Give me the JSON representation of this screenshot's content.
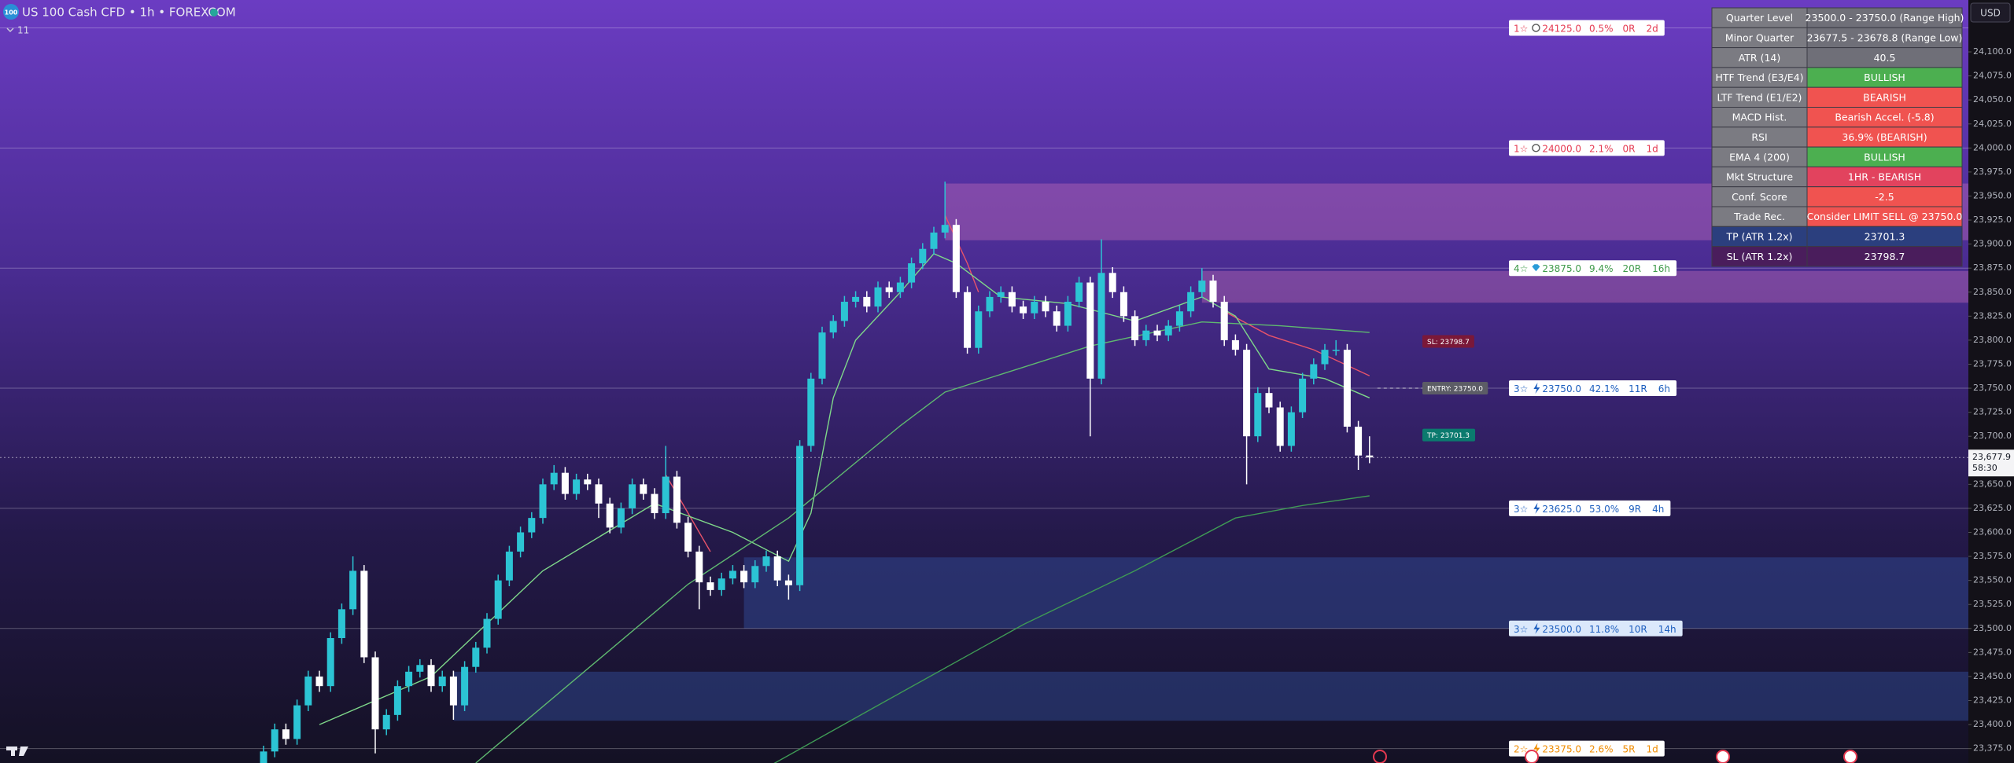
{
  "header": {
    "badge": "100",
    "symbol": "US 100 Cash CFD • 1h • FOREXCOM",
    "indicator_count": "11"
  },
  "table": {
    "rows": [
      {
        "label": "Quarter Level",
        "value": "23500.0 - 23750.0 (Range High)",
        "color": "#6f6f78"
      },
      {
        "label": "Minor Quarter",
        "value": "23677.5 - 23678.8 (Range Low)",
        "color": "#6f6f78"
      },
      {
        "label": "ATR (14)",
        "value": "40.5",
        "color": "#6f6f78"
      },
      {
        "label": "HTF Trend (E3/E4)",
        "value": "BULLISH",
        "color": "#4caf50"
      },
      {
        "label": "LTF Trend (E1/E2)",
        "value": "BEARISH",
        "color": "#f05350"
      },
      {
        "label": "MACD Hist.",
        "value": "Bearish Accel. (-5.8)",
        "color": "#f05350"
      },
      {
        "label": "RSI",
        "value": "36.9% (BEARISH)",
        "color": "#f05350"
      },
      {
        "label": "EMA 4 (200)",
        "value": "BULLISH",
        "color": "#4caf50"
      },
      {
        "label": "Mkt Structure",
        "value": "1HR - BEARISH",
        "color": "#e2435e"
      },
      {
        "label": "Conf. Score",
        "value": "-2.5",
        "color": "#f05350"
      },
      {
        "label": "Trade Rec.",
        "value": "Consider LIMIT SELL @ 23750.0",
        "color": "#f05350"
      },
      {
        "label": "TP (ATR 1.2x)",
        "value": "23701.3",
        "color": "#2b3f7e"
      },
      {
        "label": "SL (ATR 1.2x)",
        "value": "23798.7",
        "color": "#4a1d5c"
      }
    ]
  },
  "chart_data": {
    "type": "candlestick",
    "ylim": [
      23360,
      24154
    ],
    "yticks": [
      {
        "value": 24100,
        "label": "24,100.0"
      },
      {
        "value": 24075,
        "label": "24,075.0"
      },
      {
        "value": 24050,
        "label": "24,050.0"
      },
      {
        "value": 24025,
        "label": "24,025.0"
      },
      {
        "value": 24000,
        "label": "24,000.0"
      },
      {
        "value": 23975,
        "label": "23,975.0"
      },
      {
        "value": 23950,
        "label": "23,950.0"
      },
      {
        "value": 23925,
        "label": "23,925.0"
      },
      {
        "value": 23900,
        "label": "23,900.0"
      },
      {
        "value": 23875,
        "label": "23,875.0"
      },
      {
        "value": 23850,
        "label": "23,850.0"
      },
      {
        "value": 23825,
        "label": "23,825.0"
      },
      {
        "value": 23800,
        "label": "23,800.0"
      },
      {
        "value": 23775,
        "label": "23,775.0"
      },
      {
        "value": 23750,
        "label": "23,750.0"
      },
      {
        "value": 23725,
        "label": "23,725.0"
      },
      {
        "value": 23700,
        "label": "23,700.0"
      },
      {
        "value": 23650,
        "label": "23,650.0"
      },
      {
        "value": 23625,
        "label": "23,625.0"
      },
      {
        "value": 23600,
        "label": "23,600.0"
      },
      {
        "value": 23575,
        "label": "23,575.0"
      },
      {
        "value": 23550,
        "label": "23,550.0"
      },
      {
        "value": 23525,
        "label": "23,525.0"
      },
      {
        "value": 23500,
        "label": "23,500.0"
      },
      {
        "value": 23475,
        "label": "23,475.0"
      },
      {
        "value": 23450,
        "label": "23,450.0"
      },
      {
        "value": 23425,
        "label": "23,425.0"
      },
      {
        "value": 23400,
        "label": "23,400.0"
      },
      {
        "value": 23375,
        "label": "23,375.0"
      }
    ],
    "currency": "USD",
    "current_price": {
      "value": 23677.9,
      "label": "23,677.9"
    },
    "countdown": "58:30",
    "up_color": "#2cc4d4",
    "down_color": "#ffffff",
    "candles": [
      [
        23360,
        23378,
        23354,
        23372
      ],
      [
        23372,
        23401,
        23366,
        23395
      ],
      [
        23395,
        23401,
        23379,
        23385
      ],
      [
        23385,
        23426,
        23379,
        23420
      ],
      [
        23420,
        23456,
        23414,
        23450
      ],
      [
        23450,
        23456,
        23434,
        23440
      ],
      [
        23440,
        23496,
        23434,
        23490
      ],
      [
        23490,
        23526,
        23484,
        23520
      ],
      [
        23520,
        23575,
        23514,
        23560
      ],
      [
        23560,
        23566,
        23464,
        23470
      ],
      [
        23470,
        23476,
        23370,
        23395
      ],
      [
        23395,
        23416,
        23389,
        23410
      ],
      [
        23410,
        23446,
        23404,
        23440
      ],
      [
        23440,
        23461,
        23434,
        23455
      ],
      [
        23455,
        23468,
        23449,
        23462
      ],
      [
        23462,
        23468,
        23434,
        23440
      ],
      [
        23440,
        23456,
        23434,
        23450
      ],
      [
        23450,
        23456,
        23405,
        23420
      ],
      [
        23420,
        23466,
        23414,
        23460
      ],
      [
        23460,
        23486,
        23454,
        23480
      ],
      [
        23480,
        23516,
        23474,
        23510
      ],
      [
        23510,
        23556,
        23504,
        23550
      ],
      [
        23550,
        23586,
        23544,
        23580
      ],
      [
        23580,
        23606,
        23574,
        23600
      ],
      [
        23600,
        23621,
        23594,
        23615
      ],
      [
        23615,
        23656,
        23609,
        23650
      ],
      [
        23650,
        23670,
        23644,
        23662
      ],
      [
        23662,
        23668,
        23634,
        23640
      ],
      [
        23640,
        23661,
        23634,
        23655
      ],
      [
        23655,
        23661,
        23644,
        23650
      ],
      [
        23650,
        23656,
        23615,
        23630
      ],
      [
        23630,
        23636,
        23599,
        23605
      ],
      [
        23605,
        23631,
        23599,
        23625
      ],
      [
        23625,
        23656,
        23619,
        23650
      ],
      [
        23650,
        23656,
        23634,
        23640
      ],
      [
        23640,
        23646,
        23614,
        23620
      ],
      [
        23620,
        23690,
        23614,
        23658
      ],
      [
        23658,
        23664,
        23604,
        23610
      ],
      [
        23610,
        23616,
        23574,
        23580
      ],
      [
        23580,
        23586,
        23520,
        23548
      ],
      [
        23548,
        23554,
        23534,
        23540
      ],
      [
        23540,
        23558,
        23534,
        23552
      ],
      [
        23552,
        23566,
        23546,
        23560
      ],
      [
        23560,
        23566,
        23542,
        23548
      ],
      [
        23548,
        23571,
        23542,
        23565
      ],
      [
        23565,
        23581,
        23559,
        23575
      ],
      [
        23575,
        23581,
        23544,
        23550
      ],
      [
        23550,
        23556,
        23530,
        23545
      ],
      [
        23545,
        23696,
        23539,
        23690
      ],
      [
        23690,
        23766,
        23684,
        23760
      ],
      [
        23760,
        23814,
        23754,
        23808
      ],
      [
        23808,
        23826,
        23802,
        23820
      ],
      [
        23820,
        23846,
        23814,
        23840
      ],
      [
        23840,
        23851,
        23834,
        23845
      ],
      [
        23845,
        23851,
        23829,
        23835
      ],
      [
        23835,
        23861,
        23829,
        23855
      ],
      [
        23855,
        23861,
        23844,
        23850
      ],
      [
        23850,
        23866,
        23844,
        23860
      ],
      [
        23860,
        23886,
        23854,
        23880
      ],
      [
        23880,
        23901,
        23874,
        23895
      ],
      [
        23895,
        23918,
        23889,
        23912
      ],
      [
        23912,
        23965,
        23906,
        23920
      ],
      [
        23920,
        23926,
        23844,
        23850
      ],
      [
        23850,
        23856,
        23786,
        23792
      ],
      [
        23792,
        23836,
        23786,
        23830
      ],
      [
        23830,
        23851,
        23824,
        23845
      ],
      [
        23845,
        23856,
        23839,
        23850
      ],
      [
        23850,
        23856,
        23829,
        23835
      ],
      [
        23835,
        23841,
        23822,
        23828
      ],
      [
        23828,
        23846,
        23822,
        23840
      ],
      [
        23840,
        23846,
        23824,
        23830
      ],
      [
        23830,
        23836,
        23809,
        23815
      ],
      [
        23815,
        23846,
        23809,
        23840
      ],
      [
        23840,
        23866,
        23834,
        23860
      ],
      [
        23860,
        23866,
        23700,
        23760
      ],
      [
        23760,
        23905,
        23754,
        23870
      ],
      [
        23870,
        23876,
        23844,
        23850
      ],
      [
        23850,
        23856,
        23819,
        23825
      ],
      [
        23825,
        23831,
        23794,
        23800
      ],
      [
        23800,
        23816,
        23794,
        23810
      ],
      [
        23810,
        23816,
        23799,
        23805
      ],
      [
        23805,
        23821,
        23799,
        23815
      ],
      [
        23815,
        23836,
        23809,
        23830
      ],
      [
        23830,
        23856,
        23824,
        23850
      ],
      [
        23850,
        23875,
        23844,
        23862
      ],
      [
        23862,
        23868,
        23834,
        23840
      ],
      [
        23840,
        23846,
        23794,
        23800
      ],
      [
        23800,
        23806,
        23784,
        23790
      ],
      [
        23790,
        23796,
        23650,
        23700
      ],
      [
        23700,
        23751,
        23694,
        23745
      ],
      [
        23745,
        23751,
        23724,
        23730
      ],
      [
        23730,
        23736,
        23684,
        23690
      ],
      [
        23690,
        23731,
        23684,
        23725
      ],
      [
        23725,
        23766,
        23719,
        23760
      ],
      [
        23760,
        23781,
        23754,
        23775
      ],
      [
        23775,
        23796,
        23769,
        23790
      ],
      [
        23790,
        23800,
        23784,
        23790
      ],
      [
        23790,
        23796,
        23704,
        23710
      ],
      [
        23710,
        23716,
        23665,
        23680
      ],
      [
        23680,
        23700,
        23672,
        23678
      ]
    ],
    "averages": [
      {
        "color": "#e8536a",
        "i": [
          36,
          38,
          40,
          41,
          61,
          63,
          64,
          65,
          86,
          90,
          94,
          99
        ],
        "values": [
          23660,
          23620,
          23580,
          null,
          23930,
          23880,
          23850,
          null,
          23830,
          23805,
          23790,
          23763
        ]
      },
      {
        "color": "#7fd88a",
        "i": [
          5,
          15,
          25,
          35,
          42,
          47,
          49,
          51,
          53,
          57,
          60,
          62,
          66,
          72,
          78,
          84,
          87,
          90,
          95,
          99
        ],
        "values": [
          23400,
          23450,
          23560,
          23630,
          23600,
          23570,
          23620,
          23740,
          23800,
          23850,
          23890,
          23880,
          23845,
          23838,
          23820,
          23845,
          23825,
          23770,
          23760,
          23740
        ]
      },
      {
        "color": "#5fb870",
        "i": [
          19,
          38,
          47,
          57,
          61,
          74,
          84,
          91,
          99
        ],
        "values": [
          23360,
          23546,
          23615,
          23711,
          23746,
          23794,
          23819,
          23815,
          23808
        ]
      },
      {
        "color": "#3f9a55",
        "i": [
          45,
          55,
          68,
          78,
          87,
          93,
          99
        ],
        "values": [
          23355,
          23420,
          23504,
          23560,
          23615,
          23628,
          23638
        ]
      }
    ],
    "zones": [
      {
        "start": 61,
        "top": 23963,
        "bottom": 23904,
        "color": "rgba(214,120,190,0.35)"
      },
      {
        "start": 84,
        "top": 23872,
        "bottom": 23839,
        "color": "rgba(214,120,190,0.35)"
      },
      {
        "start": 43,
        "top": 23574,
        "bottom": 23500,
        "color": "rgba(50,80,160,0.45)"
      },
      {
        "start": 17,
        "top": 23455,
        "bottom": 23404,
        "color": "rgba(50,80,160,0.45)"
      }
    ],
    "levels": [
      {
        "price": {
          "value": 24125,
          "label": "24125.0"
        },
        "stars": "1☆",
        "pct": "0.5%",
        "r": "0R",
        "time": "2d",
        "color": "#e53950",
        "bg": "#ffffff",
        "icon": "circle"
      },
      {
        "price": {
          "value": 24000,
          "label": "24000.0"
        },
        "stars": "1☆",
        "pct": "2.1%",
        "r": "0R",
        "time": "1d",
        "color": "#e53950",
        "bg": "#ffffff",
        "icon": "circle"
      },
      {
        "price": {
          "value": 23875,
          "label": "23875.0"
        },
        "stars": "4☆",
        "pct": "9.4%",
        "r": "20R",
        "time": "16h",
        "color": "#3f9a4a",
        "bg": "#ffffff",
        "icon": "diamond"
      },
      {
        "price": {
          "value": 23750,
          "label": "23750.0"
        },
        "stars": "3☆",
        "pct": "42.1%",
        "r": "11R",
        "time": "6h",
        "color": "#1e5fbf",
        "bg": "#ffffff",
        "icon": "bolt"
      },
      {
        "price": {
          "value": 23625,
          "label": "23625.0"
        },
        "stars": "3☆",
        "pct": "53.0%",
        "r": "9R",
        "time": "4h",
        "color": "#1e5fbf",
        "bg": "#ffffff",
        "icon": "bolt"
      },
      {
        "price": {
          "value": 23500,
          "label": "23500.0"
        },
        "stars": "3☆",
        "pct": "11.8%",
        "r": "10R",
        "time": "14h",
        "color": "#1e5fbf",
        "bg": "#dbe8fb",
        "icon": "bolt"
      },
      {
        "price": {
          "value": 23375,
          "label": "23375.0"
        },
        "stars": "2☆",
        "pct": "2.6%",
        "r": "5R",
        "time": "1d",
        "color": "#f08c00",
        "bg": "#ffffff",
        "icon": "bolt"
      }
    ],
    "markers": [
      {
        "label": "SL: 23798.7",
        "price": 23798.7,
        "color": "#7a1838"
      },
      {
        "label": "ENTRY: 23750.0",
        "price": 23750.0,
        "color": "#5c5c66"
      },
      {
        "label": "TP: 23701.3",
        "price": 23701.3,
        "color": "#0b7a6e"
      }
    ]
  }
}
